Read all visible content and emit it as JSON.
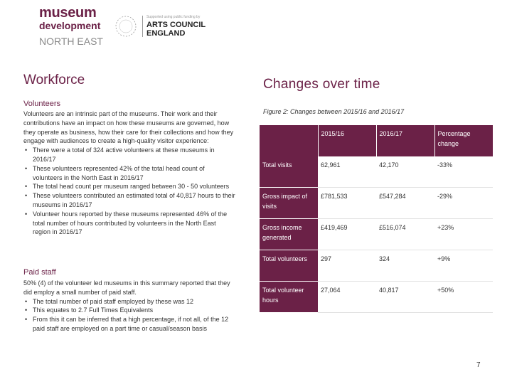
{
  "logo": {
    "line1": "museum",
    "line2": "development",
    "line3": "NORTH EAST"
  },
  "ace_logo": {
    "small_text": "Supported using public funding by",
    "name_line1": "ARTS COUNCIL",
    "name_line2": "ENGLAND",
    "seal_icon": "arts-council-seal-icon"
  },
  "left": {
    "title": "Workforce",
    "volunteers": {
      "heading": "Volunteers",
      "intro": "Volunteers are an intrinsic part of the museums. Their work and their contributions have an impact on how these museums are governed, how they operate as business, how their care for their collections and how they engage with audiences to create a high-quality visitor experience:",
      "bullets": [
        "There were a total of 324 active volunteers at these museums in 2016/17",
        "These volunteers represented 42% of the total head count of volunteers in the North East in 2016/17",
        "The total head count per museum ranged between 30 - 50 volunteers",
        "These volunteers contributed an estimated total of 40,817 hours to their museums in 2016/17",
        "Volunteer hours reported by these museums represented 46% of the total number of hours contributed by volunteers in the North East region in 2016/17"
      ]
    },
    "paid_staff": {
      "heading": "Paid staff",
      "intro": "50% (4) of the volunteer led museums in this summary reported that they did employ a small number of paid staff.",
      "bullets": [
        "The total number of paid staff employed by these was 12",
        "This equates to 2.7 Full Times Equivalents",
        "From this it can be inferred that a high percentage, if not all, of the 12 paid staff are employed on a part time or casual/season basis"
      ]
    }
  },
  "right": {
    "title": "Changes over time",
    "caption": "Figure 2: Changes between 2015/16 and 2016/17",
    "table": {
      "headers": [
        "",
        "2015/16",
        "2016/17",
        "Percentage change"
      ],
      "rows": [
        [
          "Total visits",
          "62,961",
          "42,170",
          "-33%"
        ],
        [
          "Gross impact of visits",
          "£781,533",
          "£547,284",
          "-29%"
        ],
        [
          "Gross income generated",
          "£419,469",
          "£516,074",
          "+23%"
        ],
        [
          "Total volunteers",
          "297",
          "324",
          "+9%"
        ],
        [
          "Total volunteer hours",
          "27,064",
          "40,817",
          "+50%"
        ]
      ]
    }
  },
  "page_number": "7",
  "colors": {
    "brand": "#6b2147",
    "text": "#333333",
    "muted": "#8a8a8a"
  }
}
